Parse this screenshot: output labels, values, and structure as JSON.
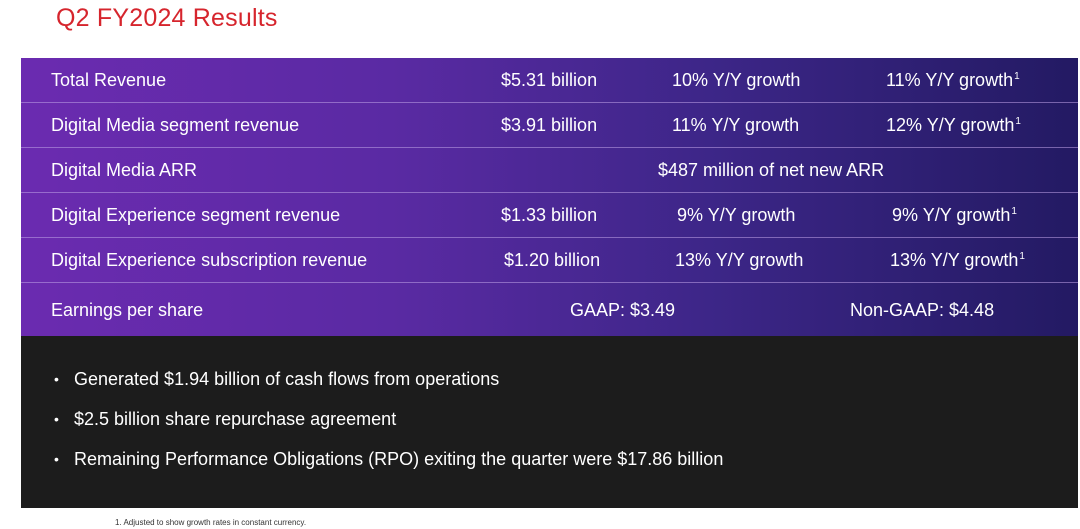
{
  "title": "Q2 FY2024 Results",
  "table": {
    "rows": [
      {
        "label": "Total Revenue",
        "value": "$5.31 billion",
        "growth": "10% Y/Y growth",
        "cc_growth": "11% Y/Y growth",
        "footnote_mark": "1"
      },
      {
        "label": "Digital Media segment revenue",
        "value": "$3.91 billion",
        "growth": "11% Y/Y growth",
        "cc_growth": "12% Y/Y growth",
        "footnote_mark": "1"
      },
      {
        "label": "Digital Media ARR",
        "merged": "$487 million of net new ARR"
      },
      {
        "label": "Digital Experience segment revenue",
        "value": "$1.33 billion",
        "growth": "9% Y/Y growth",
        "cc_growth": "9% Y/Y growth",
        "footnote_mark": "1"
      },
      {
        "label": "Digital Experience subscription revenue",
        "value": "$1.20 billion",
        "growth": "13% Y/Y growth",
        "cc_growth": "13% Y/Y growth",
        "footnote_mark": "1"
      },
      {
        "label": "Earnings per share",
        "gaap": "GAAP: $3.49",
        "non_gaap": "Non-GAAP: $4.48"
      }
    ]
  },
  "bullets": [
    "Generated $1.94 billion of cash flows from operations",
    "$2.5 billion share repurchase agreement",
    "Remaining Performance Obligations (RPO) exiting the quarter were $17.86 billion"
  ],
  "bullet_symbol": "•",
  "footnote": "1. Adjusted to show growth rates in constant currency.",
  "colors": {
    "title": "#d6252d",
    "panel_gradient_start": "#6b2bb0",
    "panel_gradient_end": "#231a63",
    "bottom_panel": "#1c1c1c"
  }
}
